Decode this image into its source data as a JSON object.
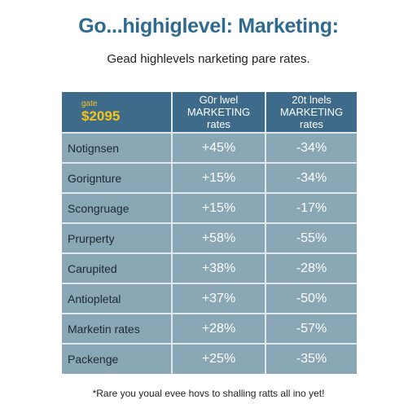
{
  "title": "Go...highiglevel: Marketing:",
  "subtitle": "Gead highlevels narketing pare rates.",
  "colors": {
    "title": "#2f6a8f",
    "header_background": "#3e6b8a",
    "table_background": "#89a7b5",
    "grid_lines": "#dfe8ec",
    "accent_yellow": "#f5c518"
  },
  "table": {
    "header": {
      "first": {
        "small": "gate",
        "value": "$2095"
      },
      "col2": [
        "G0r lwel",
        "MARKETING",
        "rates"
      ],
      "col3": [
        "20t lnels",
        "MARKETING",
        "rates"
      ]
    },
    "rows": [
      {
        "label": "Notignsen",
        "col2": "+45%",
        "col3": "-34%"
      },
      {
        "label": "Gorignture",
        "col2": "+15%",
        "col3": "-34%"
      },
      {
        "label": "Scongruage",
        "col2": "+15%",
        "col3": "-17%"
      },
      {
        "label": "Prurperty",
        "col2": "+58%",
        "col3": "-55%"
      },
      {
        "label": "Carupited",
        "col2": "+38%",
        "col3": "-28%"
      },
      {
        "label": "Antiopletal",
        "col2": "+37%",
        "col3": "-50%"
      },
      {
        "label": "Marketin rates",
        "col2": "+28%",
        "col3": "-57%"
      },
      {
        "label": "Packenge",
        "col2": "+25%",
        "col3": "-35%"
      }
    ]
  },
  "footnote": "*Rare you youal evee hovs to shalling ratts all ino yet!"
}
